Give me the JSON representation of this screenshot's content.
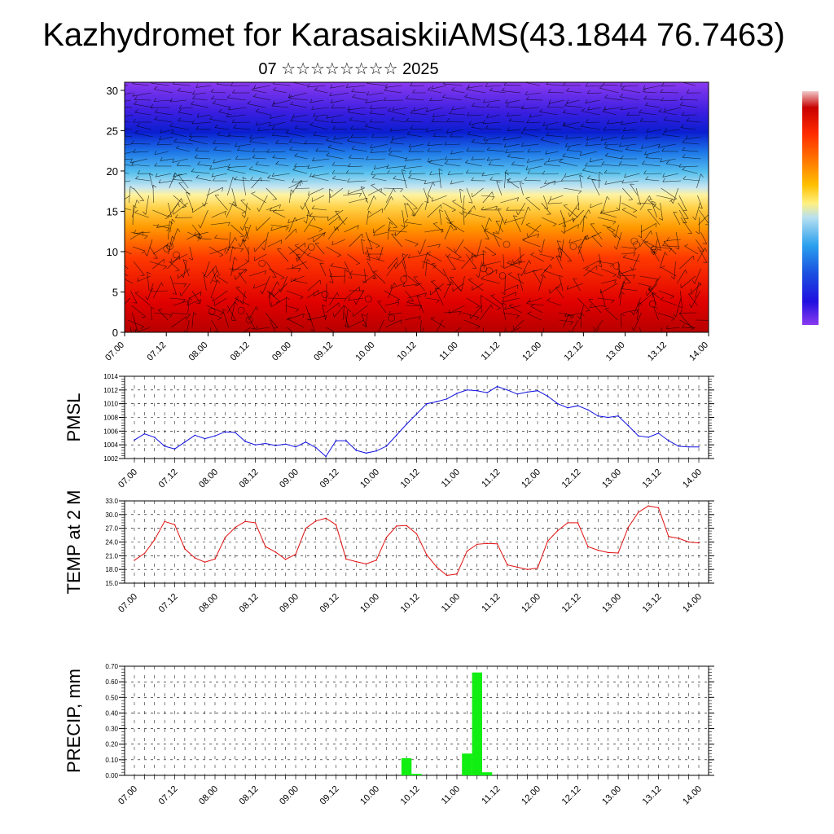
{
  "header": {
    "title": "Kazhydromet for KarasaiskiiAMS(43.1844 76.7463)",
    "subtitle": "07 ☆☆☆☆☆☆☆☆ 2025"
  },
  "time_ticks": [
    "07.00",
    "07.12",
    "08.00",
    "08.12",
    "09.00",
    "09.12",
    "10.00",
    "10.12",
    "11.00",
    "11.12",
    "12.00",
    "12.12",
    "13.00",
    "13.12",
    "14.00"
  ],
  "chart_data": [
    {
      "type": "heatmap",
      "title": "",
      "y_ticks": [
        "0",
        "5",
        "10",
        "15",
        "20",
        "25",
        "30"
      ],
      "ylim": [
        0,
        31
      ],
      "xlim": [
        0,
        42
      ],
      "colormap": [
        "#b80000",
        "#ff2200",
        "#ff6a00",
        "#ffb000",
        "#fff080",
        "#b8dff0",
        "#3fb0ea",
        "#1a4fe0",
        "#1a10d0",
        "#8030ee"
      ],
      "note_overlay": "wind barbs"
    },
    {
      "type": "line",
      "ylabel": "PMSL",
      "y_ticks": [
        "1002",
        "1004",
        "1006",
        "1008",
        "1010",
        "1012",
        "1014"
      ],
      "ylim": [
        1002,
        1014
      ],
      "xlim": [
        0,
        56
      ],
      "color": "#1010e0",
      "x": [
        0,
        1,
        2,
        3,
        4,
        5,
        6,
        7,
        8,
        9,
        10,
        11,
        12,
        13,
        14,
        15,
        16,
        17,
        18,
        19,
        20,
        21,
        22,
        23,
        24,
        25,
        26,
        27,
        28,
        29,
        30,
        31,
        32,
        33,
        34,
        35,
        36,
        37,
        38,
        39,
        40,
        41,
        42,
        43,
        44,
        45,
        46,
        47,
        48,
        49,
        50,
        51,
        52,
        53,
        54,
        55,
        56
      ],
      "values": [
        1004.7,
        1005.6,
        1005.1,
        1003.8,
        1003.4,
        1004.4,
        1005.4,
        1004.9,
        1005.3,
        1005.9,
        1005.8,
        1004.5,
        1004.0,
        1004.2,
        1003.9,
        1004.1,
        1003.7,
        1004.4,
        1003.6,
        1002.3,
        1004.6,
        1004.6,
        1003.2,
        1002.8,
        1003.1,
        1003.8,
        1005.4,
        1007.0,
        1008.5,
        1010.0,
        1010.3,
        1010.7,
        1011.5,
        1012.0,
        1011.9,
        1011.6,
        1012.5,
        1012.0,
        1011.4,
        1011.7,
        1011.9,
        1011.1,
        1010.0,
        1009.4,
        1009.7,
        1009.1,
        1008.2,
        1008.0,
        1008.2,
        1006.8,
        1005.3,
        1005.1,
        1005.7,
        1004.6,
        1003.8,
        1003.7,
        1003.7
      ]
    },
    {
      "type": "line",
      "ylabel": "TEMP at 2 M",
      "y_ticks": [
        "15.0",
        "18.0",
        "21.0",
        "24.0",
        "27.0",
        "30.0",
        "33.0"
      ],
      "ylim": [
        15,
        33
      ],
      "xlim": [
        0,
        56
      ],
      "color": "#e01010",
      "x": [
        0,
        1,
        2,
        3,
        4,
        5,
        6,
        7,
        8,
        9,
        10,
        11,
        12,
        13,
        14,
        15,
        16,
        17,
        18,
        19,
        20,
        21,
        22,
        23,
        24,
        25,
        26,
        27,
        28,
        29,
        30,
        31,
        32,
        33,
        34,
        35,
        36,
        37,
        38,
        39,
        40,
        41,
        42,
        43,
        44,
        45,
        46,
        47,
        48,
        49,
        50,
        51,
        52,
        53,
        54,
        55,
        56
      ],
      "values": [
        20.0,
        21.5,
        24.5,
        28.5,
        27.8,
        22.5,
        20.5,
        19.6,
        20.3,
        25.0,
        27.2,
        28.5,
        28.2,
        23.0,
        21.8,
        20.2,
        21.3,
        27.0,
        28.6,
        29.2,
        27.8,
        20.3,
        19.7,
        19.2,
        20.0,
        25.0,
        27.5,
        27.6,
        25.8,
        21.2,
        18.5,
        16.7,
        17.0,
        22.0,
        23.5,
        23.7,
        23.6,
        19.0,
        18.5,
        18.0,
        18.3,
        24.2,
        26.5,
        28.2,
        28.2,
        23.0,
        22.2,
        21.7,
        21.6,
        27.2,
        30.5,
        31.9,
        31.5,
        25.2,
        24.8,
        24.0,
        23.8
      ]
    },
    {
      "type": "bar",
      "ylabel": "PRECIP, mm",
      "y_ticks": [
        "0.00",
        "0.10",
        "0.20",
        "0.30",
        "0.40",
        "0.50",
        "0.60",
        "0.70"
      ],
      "ylim": [
        0,
        0.7
      ],
      "xlim": [
        0,
        56
      ],
      "color": "#11ee11",
      "bars": [
        {
          "x": 27,
          "value": 0.11
        },
        {
          "x": 28,
          "value": 0.01
        },
        {
          "x": 33,
          "value": 0.14
        },
        {
          "x": 34,
          "value": 0.66
        },
        {
          "x": 35,
          "value": 0.02
        }
      ]
    }
  ]
}
